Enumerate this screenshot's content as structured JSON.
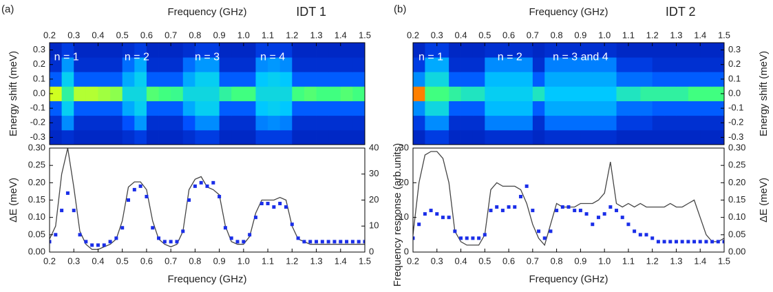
{
  "chart_data": [
    {
      "type": "heatmap",
      "panel": "(a)",
      "title": "IDT 1",
      "xlabel": "Frequency (GHz)",
      "ylabel": "Energy shift (meV)",
      "yaxis_side": "left",
      "xlim": [
        0.2,
        1.5
      ],
      "xticks": [
        0.2,
        0.3,
        0.4,
        0.5,
        0.6,
        0.7,
        0.8,
        0.9,
        {
          "value": 1,
          "label": "1.0"
        },
        1.1,
        1.2,
        1.3,
        1.4,
        1.5
      ],
      "ylim": [
        -0.35,
        0.35
      ],
      "yticks": [
        -0.3,
        -0.2,
        -0.1,
        {
          "value": 0,
          "label": "0.0"
        },
        0.1,
        0.2,
        0.3
      ],
      "annotations": [
        "n = 1",
        "n = 2",
        "n = 3",
        "n = 4"
      ],
      "zlim": [
        0,
        1
      ],
      "colorscale": [
        "#00008b",
        "#0050ff",
        "#00c8ff",
        "#40ff80",
        "#ffff00",
        "#ff0000"
      ],
      "xbins": [
        0.2,
        0.25,
        0.3,
        0.35,
        0.4,
        0.45,
        0.5,
        0.55,
        0.6,
        0.65,
        0.7,
        0.75,
        0.8,
        0.85,
        0.9,
        0.95,
        1,
        1.05,
        1.1,
        1.15,
        1.2,
        1.25,
        1.3,
        1.35,
        1.4,
        1.45,
        1.5
      ],
      "ybins": [
        -0.35,
        -0.25,
        -0.15,
        -0.05,
        0.05,
        0.15,
        0.25,
        0.35
      ],
      "z": [
        [
          0.1,
          0.12,
          0.1,
          0.1,
          0.1,
          0.1,
          0.12,
          0.15,
          0.1,
          0.1,
          0.1,
          0.12,
          0.15,
          0.15,
          0.1,
          0.1,
          0.1,
          0.15,
          0.15,
          0.15,
          0.1,
          0.1,
          0.1,
          0.1,
          0.1,
          0.1
        ],
        [
          0.12,
          0.3,
          0.12,
          0.12,
          0.12,
          0.12,
          0.2,
          0.32,
          0.12,
          0.12,
          0.12,
          0.2,
          0.3,
          0.3,
          0.12,
          0.12,
          0.12,
          0.28,
          0.3,
          0.28,
          0.12,
          0.12,
          0.12,
          0.12,
          0.12,
          0.12
        ],
        [
          0.22,
          0.42,
          0.22,
          0.22,
          0.22,
          0.22,
          0.35,
          0.42,
          0.22,
          0.22,
          0.22,
          0.35,
          0.42,
          0.42,
          0.22,
          0.22,
          0.22,
          0.4,
          0.42,
          0.4,
          0.22,
          0.22,
          0.22,
          0.22,
          0.22,
          0.22
        ],
        [
          0.75,
          0.55,
          0.72,
          0.72,
          0.7,
          0.68,
          0.45,
          0.45,
          0.62,
          0.6,
          0.58,
          0.45,
          0.45,
          0.45,
          0.55,
          0.6,
          0.6,
          0.45,
          0.45,
          0.45,
          0.6,
          0.62,
          0.6,
          0.6,
          0.62,
          0.6
        ],
        [
          0.22,
          0.42,
          0.22,
          0.22,
          0.22,
          0.22,
          0.35,
          0.42,
          0.22,
          0.22,
          0.22,
          0.35,
          0.42,
          0.42,
          0.22,
          0.22,
          0.22,
          0.4,
          0.42,
          0.4,
          0.22,
          0.22,
          0.22,
          0.22,
          0.22,
          0.22
        ],
        [
          0.12,
          0.32,
          0.12,
          0.12,
          0.12,
          0.12,
          0.25,
          0.35,
          0.12,
          0.12,
          0.12,
          0.25,
          0.32,
          0.32,
          0.12,
          0.12,
          0.12,
          0.3,
          0.32,
          0.3,
          0.12,
          0.12,
          0.12,
          0.12,
          0.12,
          0.12
        ],
        [
          0.1,
          0.15,
          0.1,
          0.1,
          0.1,
          0.1,
          0.12,
          0.15,
          0.1,
          0.1,
          0.1,
          0.12,
          0.15,
          0.15,
          0.1,
          0.1,
          0.1,
          0.15,
          0.15,
          0.15,
          0.1,
          0.1,
          0.1,
          0.1,
          0.1,
          0.1
        ]
      ]
    },
    {
      "type": "line",
      "xlabel": "Frequency (GHz)",
      "ylabel": "ΔE (meV)",
      "y2label": "Frequency response (arb.units)",
      "xlim": [
        0.2,
        1.5
      ],
      "xticks": [
        0.2,
        0.3,
        0.4,
        0.5,
        0.6,
        0.7,
        0.8,
        0.9,
        {
          "value": 1,
          "label": "1.0"
        },
        1.1,
        1.2,
        1.3,
        1.4,
        1.5
      ],
      "ylim": [
        0,
        0.3
      ],
      "yticks": [
        {
          "value": 0,
          "label": "0.00"
        },
        0.05,
        {
          "value": 0.1,
          "label": "0.10"
        },
        0.15,
        {
          "value": 0.2,
          "label": "0.20"
        },
        0.25,
        {
          "value": 0.3,
          "label": "0.30"
        }
      ],
      "y2lim": [
        0,
        40
      ],
      "y2ticks": [
        0,
        10,
        20,
        30,
        40
      ],
      "x": [
        0.2,
        0.225,
        0.25,
        0.275,
        0.3,
        0.325,
        0.35,
        0.375,
        0.4,
        0.425,
        0.45,
        0.475,
        0.5,
        0.525,
        0.55,
        0.575,
        0.6,
        0.625,
        0.65,
        0.675,
        0.7,
        0.725,
        0.75,
        0.775,
        0.8,
        0.825,
        0.85,
        0.875,
        0.9,
        0.925,
        0.95,
        0.975,
        1,
        1.025,
        1.05,
        1.075,
        1.1,
        1.125,
        1.15,
        1.175,
        1.2,
        1.225,
        1.25,
        1.275,
        1.3,
        1.325,
        1.35,
        1.375,
        1.4,
        1.425,
        1.45,
        1.475,
        1.5
      ],
      "series": [
        {
          "color": "#444444",
          "mode": "lines",
          "axis": "y2",
          "values": [
            5,
            10,
            30,
            40,
            25,
            8,
            3,
            1,
            1,
            2,
            3,
            5,
            12,
            25,
            27,
            27,
            24,
            12,
            5,
            3,
            2,
            3,
            8,
            24,
            28,
            29,
            25,
            24,
            22,
            10,
            4,
            3,
            3,
            6,
            15,
            20,
            20,
            20,
            21,
            20,
            10,
            5,
            4,
            3,
            3,
            3,
            3,
            3,
            3,
            3,
            3,
            3,
            3
          ]
        },
        {
          "color": "#1a2ee8",
          "mode": "markers",
          "axis": "y",
          "values": [
            0.03,
            0.05,
            0.12,
            0.17,
            0.12,
            0.05,
            0.03,
            0.02,
            0.02,
            0.02,
            0.03,
            0.04,
            0.07,
            0.15,
            0.18,
            0.19,
            0.16,
            0.07,
            0.04,
            0.03,
            0.03,
            0.03,
            0.06,
            0.15,
            0.19,
            0.2,
            0.19,
            0.2,
            0.16,
            0.07,
            0.04,
            0.03,
            0.03,
            0.05,
            0.1,
            0.14,
            0.14,
            0.13,
            0.14,
            0.13,
            0.08,
            0.04,
            0.03,
            0.03,
            0.03,
            0.03,
            0.03,
            0.03,
            0.03,
            0.03,
            0.03,
            0.03,
            0.03
          ]
        }
      ]
    },
    {
      "type": "heatmap",
      "panel": "(b)",
      "title": "IDT 2",
      "xlabel": "Frequency (GHz)",
      "ylabel": "Energy shift (meV)",
      "yaxis_side": "right",
      "xlim": [
        0.2,
        1.5
      ],
      "xticks": [
        0.2,
        0.3,
        0.4,
        0.5,
        0.6,
        0.7,
        0.8,
        0.9,
        {
          "value": 1,
          "label": "1.0"
        },
        1.1,
        1.2,
        1.3,
        1.4,
        1.5
      ],
      "ylim": [
        -0.35,
        0.35
      ],
      "yticks": [
        -0.3,
        -0.2,
        -0.1,
        {
          "value": 0,
          "label": "0.0"
        },
        0.1,
        0.2,
        0.3
      ],
      "annotations": [
        "n = 1",
        "n = 2",
        "n = 3 and 4"
      ],
      "zlim": [
        0,
        1
      ],
      "colorscale": [
        "#00008b",
        "#0050ff",
        "#00c8ff",
        "#40ff80",
        "#ffff00",
        "#ff0000"
      ],
      "xbins": [
        0.2,
        0.25,
        0.3,
        0.35,
        0.4,
        0.45,
        0.5,
        0.55,
        0.6,
        0.65,
        0.7,
        0.75,
        0.8,
        0.85,
        0.9,
        0.95,
        1,
        1.05,
        1.1,
        1.15,
        1.2,
        1.25,
        1.3,
        1.35,
        1.4,
        1.45,
        1.5
      ],
      "ybins": [
        -0.35,
        -0.25,
        -0.15,
        -0.05,
        0.05,
        0.15,
        0.25,
        0.35
      ],
      "z": [
        [
          0.1,
          0.15,
          0.15,
          0.1,
          0.1,
          0.1,
          0.12,
          0.12,
          0.12,
          0.12,
          0.1,
          0.12,
          0.12,
          0.12,
          0.12,
          0.12,
          0.12,
          0.1,
          0.1,
          0.1,
          0.1,
          0.1,
          0.1,
          0.1,
          0.1,
          0.1
        ],
        [
          0.15,
          0.3,
          0.3,
          0.12,
          0.12,
          0.12,
          0.28,
          0.28,
          0.28,
          0.28,
          0.12,
          0.25,
          0.25,
          0.25,
          0.25,
          0.25,
          0.25,
          0.15,
          0.15,
          0.15,
          0.12,
          0.12,
          0.12,
          0.12,
          0.12,
          0.12
        ],
        [
          0.3,
          0.45,
          0.45,
          0.22,
          0.22,
          0.22,
          0.38,
          0.38,
          0.38,
          0.38,
          0.22,
          0.35,
          0.35,
          0.35,
          0.35,
          0.35,
          0.35,
          0.25,
          0.25,
          0.25,
          0.22,
          0.22,
          0.22,
          0.22,
          0.22,
          0.22
        ],
        [
          0.9,
          0.6,
          0.6,
          0.55,
          0.5,
          0.5,
          0.42,
          0.42,
          0.42,
          0.42,
          0.5,
          0.4,
          0.4,
          0.4,
          0.4,
          0.4,
          0.4,
          0.5,
          0.5,
          0.55,
          0.55,
          0.55,
          0.55,
          0.6,
          0.6,
          0.6
        ],
        [
          0.3,
          0.45,
          0.45,
          0.22,
          0.22,
          0.22,
          0.38,
          0.38,
          0.38,
          0.38,
          0.22,
          0.35,
          0.35,
          0.35,
          0.35,
          0.35,
          0.35,
          0.25,
          0.25,
          0.25,
          0.22,
          0.22,
          0.22,
          0.22,
          0.22,
          0.22
        ],
        [
          0.15,
          0.35,
          0.35,
          0.12,
          0.12,
          0.12,
          0.3,
          0.3,
          0.3,
          0.3,
          0.12,
          0.28,
          0.28,
          0.28,
          0.28,
          0.28,
          0.28,
          0.15,
          0.15,
          0.15,
          0.12,
          0.12,
          0.12,
          0.12,
          0.12,
          0.12
        ],
        [
          0.1,
          0.15,
          0.15,
          0.1,
          0.1,
          0.1,
          0.12,
          0.12,
          0.12,
          0.12,
          0.1,
          0.12,
          0.12,
          0.12,
          0.12,
          0.12,
          0.12,
          0.1,
          0.1,
          0.1,
          0.1,
          0.1,
          0.1,
          0.1,
          0.1,
          0.1
        ]
      ]
    },
    {
      "type": "line",
      "xlabel": "Frequency (GHz)",
      "y2label": "ΔE (meV)",
      "xlim": [
        0.2,
        1.5
      ],
      "xticks": [
        0.2,
        0.3,
        0.4,
        0.5,
        0.6,
        0.7,
        0.8,
        0.9,
        {
          "value": 1,
          "label": "1.0"
        },
        1.1,
        1.2,
        1.3,
        1.4,
        1.5
      ],
      "ylim": [
        0,
        30
      ],
      "yticks": [
        0,
        10,
        20,
        30
      ],
      "y2lim": [
        0,
        0.3
      ],
      "y2ticks": [
        {
          "value": 0,
          "label": "0.00"
        },
        0.05,
        {
          "value": 0.1,
          "label": "0.10"
        },
        0.15,
        {
          "value": 0.2,
          "label": "0.20"
        },
        0.25,
        {
          "value": 0.3,
          "label": "0.30"
        }
      ],
      "x": [
        0.2,
        0.225,
        0.25,
        0.275,
        0.3,
        0.325,
        0.35,
        0.375,
        0.4,
        0.425,
        0.45,
        0.475,
        0.5,
        0.525,
        0.55,
        0.575,
        0.6,
        0.625,
        0.65,
        0.675,
        0.7,
        0.725,
        0.75,
        0.775,
        0.8,
        0.825,
        0.85,
        0.875,
        0.9,
        0.925,
        0.95,
        0.975,
        1,
        1.025,
        1.05,
        1.075,
        1.1,
        1.125,
        1.15,
        1.175,
        1.2,
        1.225,
        1.25,
        1.275,
        1.3,
        1.325,
        1.35,
        1.375,
        1.4,
        1.425,
        1.45,
        1.475,
        1.5
      ],
      "series": [
        {
          "color": "#444444",
          "mode": "lines",
          "axis": "y",
          "values": [
            5,
            20,
            28,
            29,
            29,
            27,
            20,
            6,
            3,
            2,
            2,
            2,
            5,
            18,
            20,
            19,
            19,
            19,
            18,
            14,
            8,
            4,
            2,
            8,
            14,
            13,
            13,
            13,
            14,
            14,
            14,
            15,
            17,
            26,
            14,
            13,
            14,
            13,
            14,
            13,
            13,
            13,
            13,
            14,
            13,
            13,
            14,
            15,
            10,
            5,
            3,
            3,
            4
          ]
        },
        {
          "color": "#1a2ee8",
          "mode": "markers",
          "axis": "y2",
          "values": [
            0.04,
            0.08,
            0.11,
            0.12,
            0.11,
            0.1,
            0.1,
            0.06,
            0.04,
            0.04,
            0.04,
            0.04,
            0.05,
            0.12,
            0.13,
            0.12,
            0.13,
            0.13,
            0.16,
            0.19,
            0.12,
            0.06,
            0.04,
            0.06,
            0.12,
            0.13,
            0.13,
            0.12,
            0.12,
            0.11,
            0.08,
            0.1,
            0.11,
            0.13,
            0.12,
            0.1,
            0.08,
            0.06,
            0.05,
            0.05,
            0.04,
            0.03,
            0.03,
            0.03,
            0.03,
            0.03,
            0.03,
            0.03,
            0.03,
            0.03,
            0.03,
            0.03,
            0.03
          ]
        }
      ]
    }
  ]
}
